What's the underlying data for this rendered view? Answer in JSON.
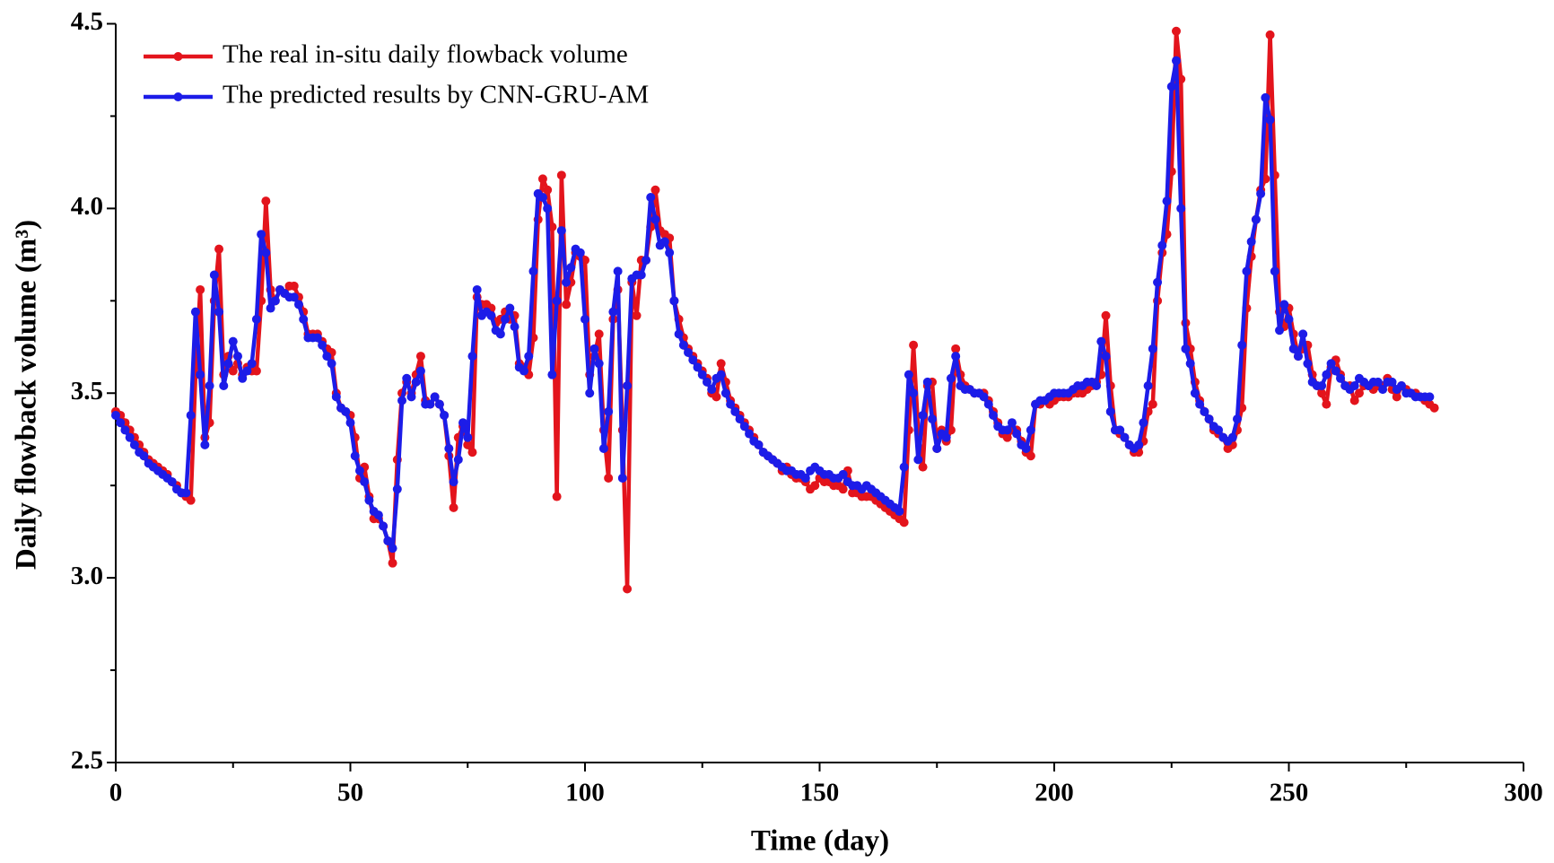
{
  "chart_data": {
    "type": "line",
    "xlabel": "Time (day)",
    "ylabel": "Daily flowback volume (m³)",
    "xlim": [
      0,
      300
    ],
    "xticks": [
      0,
      50,
      100,
      150,
      200,
      250,
      300
    ],
    "ylim": [
      2.5,
      4.5
    ],
    "yticks": [
      2.5,
      {
        "value": 3.0,
        "label": "3.0"
      },
      3.5,
      {
        "value": 4.0,
        "label": "4.0"
      },
      4.5
    ],
    "legend": "upper left",
    "series": [
      {
        "name": "The real in-situ daily flowback volume",
        "color": "#e3141c",
        "values": [
          3.45,
          3.44,
          3.42,
          3.4,
          3.38,
          3.36,
          3.34,
          3.32,
          3.31,
          3.3,
          3.29,
          3.28,
          3.26,
          3.25,
          3.23,
          3.22,
          3.21,
          3.55,
          3.78,
          3.38,
          3.42,
          3.75,
          3.89,
          3.55,
          3.6,
          3.56,
          3.58,
          3.55,
          3.57,
          3.56,
          3.56,
          3.75,
          4.02,
          3.78,
          3.75,
          3.78,
          3.77,
          3.79,
          3.79,
          3.76,
          3.72,
          3.66,
          3.66,
          3.66,
          3.64,
          3.62,
          3.61,
          3.5,
          3.46,
          3.45,
          3.44,
          3.38,
          3.27,
          3.3,
          3.22,
          3.16,
          3.16,
          3.14,
          3.1,
          3.04,
          3.32,
          3.5,
          3.53,
          3.5,
          3.55,
          3.6,
          3.48,
          3.47,
          3.49,
          3.47,
          3.44,
          3.33,
          3.19,
          3.38,
          3.41,
          3.36,
          3.34,
          3.76,
          3.74,
          3.74,
          3.73,
          3.69,
          3.7,
          3.72,
          3.7,
          3.71,
          3.58,
          3.57,
          3.55,
          3.65,
          3.97,
          4.08,
          4.05,
          3.95,
          3.22,
          4.09,
          3.74,
          3.8,
          3.88,
          3.87,
          3.86,
          3.55,
          3.6,
          3.66,
          3.4,
          3.27,
          3.7,
          3.78,
          3.4,
          2.97,
          3.8,
          3.71,
          3.86,
          3.86,
          3.95,
          4.05,
          3.94,
          3.93,
          3.92,
          3.75,
          3.7,
          3.65,
          3.62,
          3.6,
          3.58,
          3.56,
          3.54,
          3.5,
          3.49,
          3.58,
          3.53,
          3.48,
          3.46,
          3.44,
          3.42,
          3.4,
          3.38,
          3.36,
          3.34,
          3.33,
          3.32,
          3.31,
          3.29,
          3.3,
          3.28,
          3.27,
          3.27,
          3.26,
          3.24,
          3.25,
          3.27,
          3.26,
          3.26,
          3.25,
          3.25,
          3.24,
          3.29,
          3.23,
          3.23,
          3.22,
          3.22,
          3.22,
          3.21,
          3.2,
          3.19,
          3.18,
          3.17,
          3.16,
          3.15,
          3.4,
          3.63,
          3.4,
          3.3,
          3.52,
          3.53,
          3.35,
          3.4,
          3.37,
          3.4,
          3.62,
          3.55,
          3.52,
          3.51,
          3.5,
          3.5,
          3.5,
          3.48,
          3.45,
          3.42,
          3.39,
          3.38,
          3.4,
          3.4,
          3.37,
          3.34,
          3.33,
          3.47,
          3.47,
          3.48,
          3.47,
          3.48,
          3.49,
          3.49,
          3.49,
          3.5,
          3.5,
          3.5,
          3.51,
          3.52,
          3.53,
          3.55,
          3.71,
          3.52,
          3.4,
          3.39,
          3.38,
          3.36,
          3.34,
          3.34,
          3.37,
          3.45,
          3.47,
          3.75,
          3.88,
          3.93,
          4.1,
          4.48,
          4.35,
          3.69,
          3.62,
          3.53,
          3.48,
          3.45,
          3.43,
          3.4,
          3.39,
          3.38,
          3.35,
          3.36,
          3.4,
          3.46,
          3.73,
          3.87,
          3.97,
          4.05,
          4.08,
          4.47,
          4.09,
          3.72,
          3.68,
          3.73,
          3.66,
          3.6,
          3.62,
          3.63,
          3.55,
          3.52,
          3.5,
          3.47,
          3.57,
          3.59,
          3.55,
          3.52,
          3.52,
          3.48,
          3.5,
          3.52,
          3.52,
          3.51,
          3.52,
          3.52,
          3.54,
          3.51,
          3.49,
          3.52,
          3.51,
          3.5,
          3.5,
          3.49,
          3.48,
          3.47,
          3.46
        ]
      },
      {
        "name": "The predicted results by CNN-GRU-AM",
        "color": "#1c1ce8",
        "values": [
          3.44,
          3.42,
          3.4,
          3.38,
          3.36,
          3.34,
          3.33,
          3.31,
          3.3,
          3.29,
          3.28,
          3.27,
          3.26,
          3.24,
          3.23,
          3.23,
          3.44,
          3.72,
          3.55,
          3.36,
          3.52,
          3.82,
          3.72,
          3.52,
          3.58,
          3.64,
          3.6,
          3.54,
          3.56,
          3.58,
          3.7,
          3.93,
          3.88,
          3.73,
          3.75,
          3.78,
          3.77,
          3.76,
          3.76,
          3.74,
          3.7,
          3.65,
          3.65,
          3.65,
          3.63,
          3.6,
          3.58,
          3.49,
          3.46,
          3.45,
          3.42,
          3.33,
          3.29,
          3.26,
          3.21,
          3.18,
          3.17,
          3.14,
          3.1,
          3.08,
          3.24,
          3.48,
          3.54,
          3.49,
          3.53,
          3.56,
          3.47,
          3.47,
          3.49,
          3.47,
          3.44,
          3.35,
          3.26,
          3.32,
          3.42,
          3.38,
          3.6,
          3.78,
          3.71,
          3.72,
          3.71,
          3.67,
          3.66,
          3.7,
          3.73,
          3.68,
          3.57,
          3.56,
          3.6,
          3.83,
          4.04,
          4.03,
          4.0,
          3.55,
          3.75,
          3.94,
          3.8,
          3.84,
          3.89,
          3.88,
          3.7,
          3.5,
          3.62,
          3.58,
          3.35,
          3.45,
          3.72,
          3.83,
          3.27,
          3.52,
          3.81,
          3.82,
          3.82,
          3.86,
          4.03,
          3.97,
          3.9,
          3.91,
          3.88,
          3.75,
          3.66,
          3.63,
          3.61,
          3.59,
          3.57,
          3.55,
          3.53,
          3.51,
          3.54,
          3.55,
          3.5,
          3.47,
          3.45,
          3.43,
          3.41,
          3.39,
          3.37,
          3.36,
          3.34,
          3.33,
          3.32,
          3.31,
          3.3,
          3.29,
          3.29,
          3.28,
          3.28,
          3.27,
          3.29,
          3.3,
          3.29,
          3.28,
          3.28,
          3.27,
          3.27,
          3.28,
          3.26,
          3.25,
          3.25,
          3.24,
          3.25,
          3.24,
          3.23,
          3.22,
          3.21,
          3.2,
          3.19,
          3.18,
          3.3,
          3.55,
          3.5,
          3.32,
          3.44,
          3.53,
          3.43,
          3.35,
          3.39,
          3.38,
          3.54,
          3.6,
          3.52,
          3.51,
          3.51,
          3.5,
          3.5,
          3.49,
          3.47,
          3.44,
          3.41,
          3.4,
          3.4,
          3.42,
          3.39,
          3.36,
          3.35,
          3.4,
          3.47,
          3.48,
          3.48,
          3.49,
          3.5,
          3.5,
          3.5,
          3.5,
          3.51,
          3.52,
          3.52,
          3.53,
          3.53,
          3.52,
          3.64,
          3.6,
          3.45,
          3.4,
          3.4,
          3.38,
          3.36,
          3.35,
          3.36,
          3.42,
          3.52,
          3.62,
          3.8,
          3.9,
          4.02,
          4.33,
          4.4,
          4.0,
          3.62,
          3.58,
          3.5,
          3.47,
          3.45,
          3.43,
          3.41,
          3.4,
          3.38,
          3.37,
          3.38,
          3.43,
          3.63,
          3.83,
          3.91,
          3.97,
          4.04,
          4.3,
          4.24,
          3.83,
          3.67,
          3.74,
          3.7,
          3.62,
          3.6,
          3.66,
          3.58,
          3.53,
          3.52,
          3.52,
          3.55,
          3.58,
          3.56,
          3.54,
          3.52,
          3.51,
          3.52,
          3.54,
          3.53,
          3.52,
          3.53,
          3.53,
          3.51,
          3.53,
          3.53,
          3.51,
          3.52,
          3.5,
          3.5,
          3.49,
          3.49,
          3.49,
          3.49
        ]
      }
    ]
  }
}
